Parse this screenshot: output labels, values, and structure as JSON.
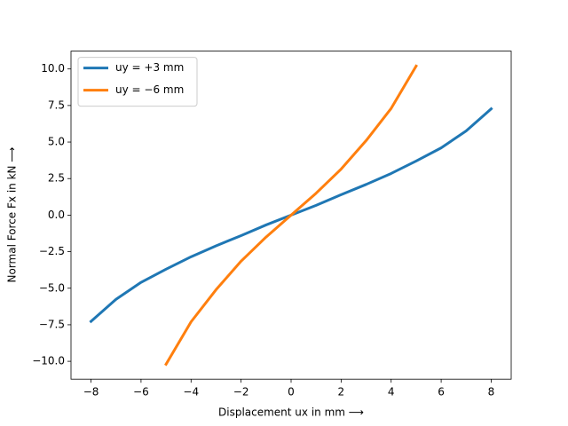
{
  "chart_data": {
    "type": "line",
    "xlabel": "Displacement ux in mm ⟶",
    "ylabel": "Normal Force Fx in kN ⟶",
    "series": [
      {
        "name": "uy = +3 mm",
        "color": "#1f77b4",
        "x": [
          -8,
          -7,
          -6,
          -5,
          -4,
          -3,
          -2,
          -1,
          0,
          1,
          2,
          3,
          4,
          5,
          6,
          7,
          8
        ],
        "values": [
          -7.27,
          -5.76,
          -4.6,
          -3.7,
          -2.85,
          -2.1,
          -1.4,
          -0.67,
          0,
          0.67,
          1.4,
          2.1,
          2.85,
          3.7,
          4.6,
          5.76,
          7.27
        ]
      },
      {
        "name": "uy = −6 mm",
        "color": "#ff7f0e",
        "x": [
          -5,
          -4,
          -3,
          -2,
          -1,
          0,
          1,
          2,
          3,
          4,
          5
        ],
        "values": [
          -10.2,
          -7.3,
          -5.1,
          -3.15,
          -1.5,
          0,
          1.5,
          3.15,
          5.1,
          7.3,
          10.2
        ]
      }
    ],
    "xlim": [
      -8.8,
      8.8
    ],
    "xticks": [
      {
        "value": -8,
        "label": "−8"
      },
      {
        "value": -6,
        "label": "−6"
      },
      {
        "value": -4,
        "label": "−4"
      },
      {
        "value": -2,
        "label": "−2"
      },
      0,
      2,
      4,
      6,
      8
    ],
    "ylim": [
      -11.22,
      11.22
    ],
    "yticks": [
      {
        "value": -10,
        "label": "−10.0"
      },
      {
        "value": -7.5,
        "label": "−7.5"
      },
      {
        "value": -5,
        "label": "−5.0"
      },
      {
        "value": -2.5,
        "label": "−2.5"
      },
      {
        "value": 0,
        "label": "0.0"
      },
      2.5,
      {
        "value": 5,
        "label": "5.0"
      },
      7.5,
      {
        "value": 10,
        "label": "10.0"
      }
    ],
    "legend": "upper left"
  }
}
